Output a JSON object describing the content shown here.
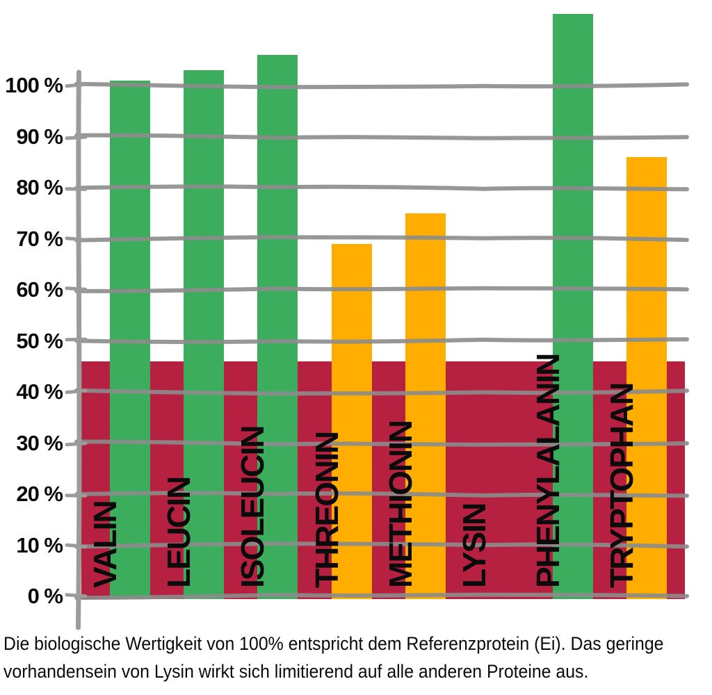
{
  "chart_data": {
    "type": "bar",
    "title": "",
    "categories": [
      "VALIN",
      "LEUCIN",
      "ISOLEUCIN",
      "THREONIN",
      "METHIONIN",
      "LYSIN",
      "PHENYLALANIN",
      "TRYPTOPHAN"
    ],
    "values": [
      101,
      103,
      106,
      69,
      75,
      46,
      114,
      86
    ],
    "unit": "%",
    "bar_styles": [
      "green",
      "green",
      "green",
      "orange",
      "orange",
      "band",
      "green",
      "orange"
    ],
    "limiting_amino_acid": "LYSIN",
    "limiting_value": 46,
    "yticks": [
      0,
      10,
      20,
      30,
      40,
      50,
      60,
      70,
      80,
      90,
      100
    ],
    "ytick_suffix": " %",
    "ylim": [
      0,
      117
    ],
    "grid": true,
    "legend": "none",
    "colors": {
      "green": "#3BAD5C",
      "orange": "#FFAE00",
      "band_red": "#B62141",
      "grid_gray": "#9A9A9A",
      "label_black": "#0B0B0B"
    }
  },
  "caption": {
    "line1": "Die biologische Wertigkeit von 100% entspricht dem Referenzprotein (Ei). Das geringe",
    "line2": "vorhandensein von Lysin wirkt sich limitierend auf alle anderen Proteine aus."
  }
}
